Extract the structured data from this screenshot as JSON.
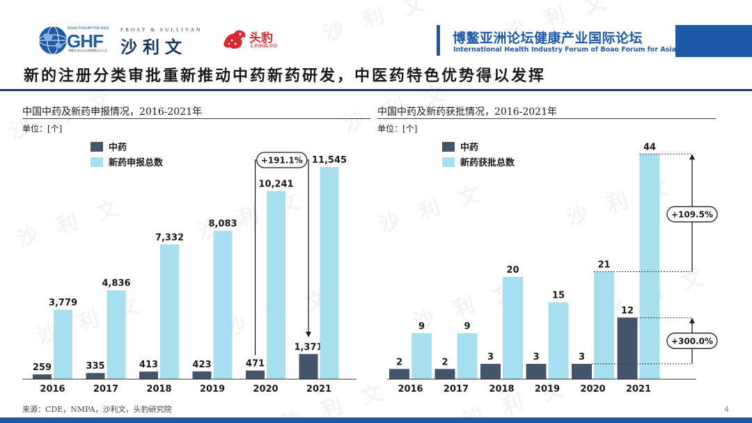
{
  "header": {
    "ghf_small": "BOAO FORUM FOR ASIA",
    "ghf_name": "GHF",
    "ghf_sub": "博鳌亚洲论坛全球健康论坛大会",
    "fs_en": "FROST & SULLIVAN",
    "fs_cn": "沙利文",
    "leadleo_cn": "头豹",
    "leadleo_en": "LeadLeo",
    "forum_cn": "博鳌亚洲论坛健康产业国际论坛",
    "forum_en": "International Health Industry Forum of Boao Forum for Asia"
  },
  "headline": "新的注册分类审批重新推动中药新药研发，中医药特色优势得以发挥",
  "watermark": "沙 利 文",
  "colors": {
    "tcm": "#44546a",
    "total": "#a7def0",
    "accent": "#1f5aa6"
  },
  "chart_data": [
    {
      "type": "bar",
      "title": "中国中药及新药申报情况，2016-2021年",
      "unit": "单位：[个]",
      "categories": [
        "2016",
        "2017",
        "2018",
        "2019",
        "2020",
        "2021"
      ],
      "series": [
        {
          "name": "中药",
          "values": [
            259,
            335,
            413,
            423,
            471,
            1371
          ],
          "labels": [
            "259",
            "335",
            "413",
            "423",
            "471",
            "1,371"
          ]
        },
        {
          "name": "新药申报总数",
          "values": [
            3779,
            4836,
            7332,
            8083,
            10241,
            11545
          ],
          "labels": [
            "3,779",
            "4,836",
            "7,332",
            "8,083",
            "10,241",
            "11,545"
          ]
        }
      ],
      "ylim": [
        0,
        12000
      ],
      "annotations": [
        {
          "text": "+191.1%"
        }
      ]
    },
    {
      "type": "bar",
      "title": "中国中药及新药获批情况，2016-2021年",
      "unit": "单位：[个]",
      "categories": [
        "2016",
        "2017",
        "2018",
        "2019",
        "2020",
        "2021"
      ],
      "series": [
        {
          "name": "中药",
          "values": [
            2,
            2,
            3,
            3,
            3,
            12
          ],
          "labels": [
            "2",
            "2",
            "3",
            "3",
            "3",
            "12"
          ]
        },
        {
          "name": "新药获批总数",
          "values": [
            9,
            9,
            20,
            15,
            21,
            44
          ],
          "labels": [
            "9",
            "9",
            "20",
            "15",
            "21",
            "44"
          ]
        }
      ],
      "ylim": [
        0,
        45
      ],
      "annotations": [
        {
          "text": "+109.5%"
        },
        {
          "text": "+300.0%"
        }
      ]
    }
  ],
  "footer": {
    "source": "来源：CDE，NMPA，沙利文，头豹研究院",
    "page": "4"
  }
}
